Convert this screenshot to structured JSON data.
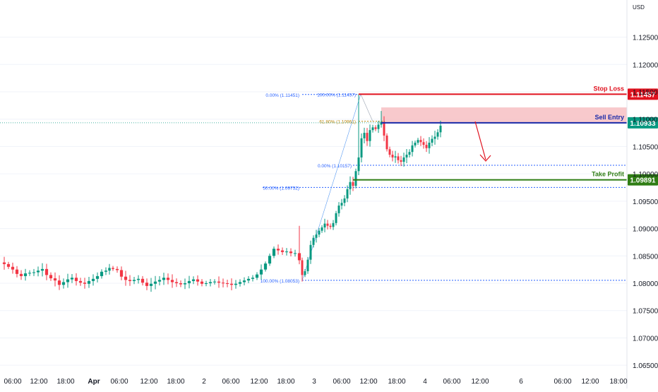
{
  "currency": "USD",
  "colors": {
    "up": "#089981",
    "down": "#f23645",
    "stop": "#e0121f",
    "entry": "#1a2aa8",
    "entry_badge": "#089981",
    "take_profit": "#2f7d14",
    "fib_blue": "#2962ff",
    "fib_gold": "#b8860b",
    "zone": "#f7c0c3",
    "arrow": "#e0121f",
    "grid": "#f0f3fa",
    "axis_text": "#131722"
  },
  "chart_data": {
    "type": "candlestick",
    "title": "",
    "ylim": [
      1.0645,
      1.1305
    ],
    "y_ticks": [
      {
        "value": 1.125,
        "label": "1.12500"
      },
      {
        "value": 1.12,
        "label": "1.12000"
      },
      {
        "value": 1.115,
        "label": "1.11500"
      },
      {
        "value": 1.11,
        "label": "1.11000"
      },
      {
        "value": 1.105,
        "label": "1.10500"
      },
      {
        "value": 1.1,
        "label": "1.10000"
      },
      {
        "value": 1.095,
        "label": "1.09500"
      },
      {
        "value": 1.09,
        "label": "1.09000"
      },
      {
        "value": 1.085,
        "label": "1.08500"
      },
      {
        "value": 1.08,
        "label": "1.08000"
      },
      {
        "value": 1.075,
        "label": "1.07500"
      },
      {
        "value": 1.07,
        "label": "1.07000"
      },
      {
        "value": 1.065,
        "label": "1.06500"
      }
    ],
    "x_ticks": [
      {
        "label": "06:00",
        "bold": false
      },
      {
        "label": "12:00",
        "bold": false
      },
      {
        "label": "18:00",
        "bold": false
      },
      {
        "label": "Apr",
        "bold": true
      },
      {
        "label": "06:00",
        "bold": false
      },
      {
        "label": "12:00",
        "bold": false
      },
      {
        "label": "18:00",
        "bold": false
      },
      {
        "label": "2",
        "bold": false
      },
      {
        "label": "06:00",
        "bold": false
      },
      {
        "label": "12:00",
        "bold": false
      },
      {
        "label": "18:00",
        "bold": false
      },
      {
        "label": "3",
        "bold": false
      },
      {
        "label": "06:00",
        "bold": false
      },
      {
        "label": "12:00",
        "bold": false
      },
      {
        "label": "18:00",
        "bold": false
      },
      {
        "label": "4",
        "bold": false
      },
      {
        "label": "06:00",
        "bold": false
      },
      {
        "label": "12:00",
        "bold": false
      },
      {
        "label": "6",
        "bold": false
      },
      {
        "label": "06:00",
        "bold": false
      },
      {
        "label": "12:00",
        "bold": false
      },
      {
        "label": "18:00",
        "bold": false
      }
    ],
    "price_path": [
      [
        0,
        1.0838
      ],
      [
        6,
        1.0835
      ],
      [
        12,
        1.083
      ],
      [
        18,
        1.0825
      ],
      [
        24,
        1.0817
      ],
      [
        30,
        1.0813
      ],
      [
        36,
        1.0818
      ],
      [
        42,
        1.0819
      ],
      [
        48,
        1.082
      ],
      [
        54,
        1.0823
      ],
      [
        60,
        1.0826
      ],
      [
        66,
        1.0815
      ],
      [
        72,
        1.0809
      ],
      [
        78,
        1.0805
      ],
      [
        84,
        1.0797
      ],
      [
        90,
        1.0802
      ],
      [
        96,
        1.0807
      ],
      [
        102,
        1.081
      ],
      [
        108,
        1.0804
      ],
      [
        114,
        1.0801
      ],
      [
        120,
        1.0799
      ],
      [
        126,
        1.0804
      ],
      [
        132,
        1.0808
      ],
      [
        138,
        1.0813
      ],
      [
        144,
        1.0821
      ],
      [
        150,
        1.0823
      ],
      [
        155,
        1.0828
      ],
      [
        160,
        1.0826
      ],
      [
        166,
        1.0824
      ],
      [
        172,
        1.0812
      ],
      [
        178,
        1.0806
      ],
      [
        184,
        1.0804
      ],
      [
        190,
        1.0806
      ],
      [
        196,
        1.0808
      ],
      [
        202,
        1.0801
      ],
      [
        208,
        1.0795
      ],
      [
        214,
        1.0799
      ],
      [
        220,
        1.0803
      ],
      [
        226,
        1.0806
      ],
      [
        232,
        1.081
      ],
      [
        238,
        1.0806
      ],
      [
        244,
        1.0802
      ],
      [
        250,
        1.08
      ],
      [
        256,
        1.0798
      ],
      [
        262,
        1.08
      ],
      [
        268,
        1.0804
      ],
      [
        274,
        1.0807
      ],
      [
        280,
        1.0803
      ],
      [
        286,
        1.0799
      ],
      [
        292,
        1.08
      ],
      [
        298,
        1.0802
      ],
      [
        304,
        1.0803
      ],
      [
        310,
        1.0801
      ],
      [
        316,
        1.08
      ],
      [
        322,
        1.0799
      ],
      [
        328,
        1.0797
      ],
      [
        334,
        1.0799
      ],
      [
        340,
        1.0802
      ],
      [
        346,
        1.0805
      ],
      [
        352,
        1.0808
      ],
      [
        358,
        1.081
      ],
      [
        364,
        1.0816
      ],
      [
        370,
        1.0825
      ],
      [
        376,
        1.0836
      ],
      [
        382,
        1.085
      ],
      [
        388,
        1.0863
      ],
      [
        394,
        1.086
      ],
      [
        400,
        1.0857
      ],
      [
        406,
        1.0858
      ],
      [
        412,
        1.0855
      ],
      [
        418,
        1.0855
      ],
      [
        424,
        1.0842
      ],
      [
        428,
        1.0815
      ],
      [
        432,
        1.0822
      ],
      [
        436,
        1.0843
      ],
      [
        440,
        1.087
      ],
      [
        444,
        1.0883
      ],
      [
        448,
        1.0889
      ],
      [
        452,
        1.0896
      ],
      [
        456,
        1.0902
      ],
      [
        460,
        1.0909
      ],
      [
        464,
        1.0905
      ],
      [
        468,
        1.0903
      ],
      [
        472,
        1.091
      ],
      [
        476,
        1.0928
      ],
      [
        480,
        1.0942
      ],
      [
        484,
        1.0947
      ],
      [
        488,
        1.0955
      ],
      [
        492,
        1.0972
      ],
      [
        496,
        1.0985
      ],
      [
        500,
        1.0978
      ],
      [
        504,
        1.1005
      ],
      [
        508,
        1.103
      ],
      [
        512,
        1.1065
      ],
      [
        516,
        1.1075
      ],
      [
        520,
        1.106
      ],
      [
        524,
        1.108
      ],
      [
        528,
        1.1085
      ],
      [
        532,
        1.1082
      ],
      [
        536,
        1.109
      ],
      [
        540,
        1.1095
      ],
      [
        544,
        1.107
      ],
      [
        548,
        1.1045
      ],
      [
        552,
        1.1035
      ],
      [
        556,
        1.103
      ],
      [
        560,
        1.1032
      ],
      [
        564,
        1.1025
      ],
      [
        568,
        1.1022
      ],
      [
        572,
        1.103
      ],
      [
        576,
        1.1035
      ],
      [
        580,
        1.104
      ],
      [
        584,
        1.1052
      ],
      [
        588,
        1.1057
      ],
      [
        592,
        1.1062
      ],
      [
        596,
        1.1058
      ],
      [
        600,
        1.1053
      ],
      [
        604,
        1.1047
      ],
      [
        608,
        1.1057
      ],
      [
        612,
        1.1064
      ],
      [
        616,
        1.1068
      ],
      [
        620,
        1.1076
      ],
      [
        624,
        1.1088
      ]
    ],
    "levels": {
      "stop_loss": {
        "label": "Stop Loss",
        "value": 1.11457,
        "badge": "1.11457"
      },
      "sell_entry": {
        "label": "Sell Entry",
        "value": 1.10933,
        "badge": "1.10933"
      },
      "take_profit": {
        "label": "Take Profit",
        "value": 1.09891,
        "badge": "1.09891"
      },
      "sell_zone": [
        1.10933,
        1.11215
      ]
    },
    "fib_labels": [
      {
        "text": "0.00% (1.11451)",
        "value": 1.11451
      },
      {
        "text": "100.00% (1.11457)",
        "value": 1.11457
      },
      {
        "text": "61.80% (1.10961)",
        "value": 1.10961
      },
      {
        "text": "0.00% (1.10157)",
        "value": 1.10157
      },
      {
        "text": "50.00% (1.09752)",
        "value": 1.09752
      },
      {
        "text": "100.00% (1.08053)",
        "value": 1.08053
      }
    ]
  }
}
